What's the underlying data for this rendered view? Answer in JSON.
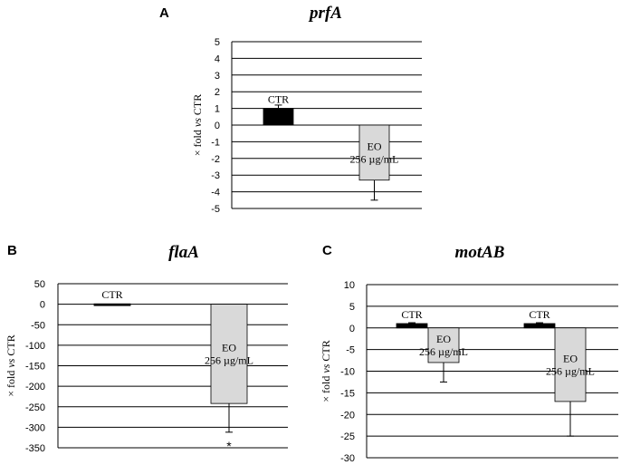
{
  "chart_data": [
    {
      "type": "bar",
      "panel": "A",
      "title": "prfA",
      "ylabel": "× fold vs CTR",
      "ylim": [
        -5,
        5
      ],
      "yticks": [
        5,
        4,
        3,
        2,
        1,
        0,
        -1,
        -2,
        -3,
        -4,
        -5
      ],
      "bars": [
        {
          "label": "CTR",
          "value": 1.0,
          "error": 0.2,
          "color": "#000000"
        },
        {
          "label": "EO\n256 µg/mL",
          "value": -3.3,
          "error": 1.2,
          "color": "#d9d9d9"
        }
      ]
    },
    {
      "type": "bar",
      "panel": "B",
      "title": "flaA",
      "ylabel": "× fold vs CTR",
      "ylim": [
        -350,
        50
      ],
      "yticks": [
        50,
        0,
        -50,
        -100,
        -150,
        -200,
        -250,
        -300,
        -350
      ],
      "bars": [
        {
          "label": "CTR",
          "value": 1,
          "error": 0,
          "color": "#000000"
        },
        {
          "label": "EO\n256 µg/mL",
          "value": -242,
          "error": 70,
          "color": "#d9d9d9",
          "significance": "*"
        }
      ]
    },
    {
      "type": "bar",
      "panel": "C",
      "title": "motAB",
      "ylabel": "× fold vs CTR",
      "ylim": [
        -30,
        10
      ],
      "yticks": [
        10,
        5,
        0,
        -5,
        -10,
        -15,
        -20,
        -25,
        -30
      ],
      "bars": [
        {
          "label": "CTR",
          "value": 1.0,
          "error": 0.2,
          "color": "#000000"
        },
        {
          "label": "EO\n256 µg/mL",
          "value": -8.0,
          "error": 4.5,
          "color": "#d9d9d9"
        },
        {
          "label": "CTR",
          "value": 1.0,
          "error": 0.2,
          "color": "#000000"
        },
        {
          "label": "EO\n256 µg/mL",
          "value": -17.0,
          "error": 8.0,
          "color": "#d9d9d9"
        }
      ]
    }
  ]
}
